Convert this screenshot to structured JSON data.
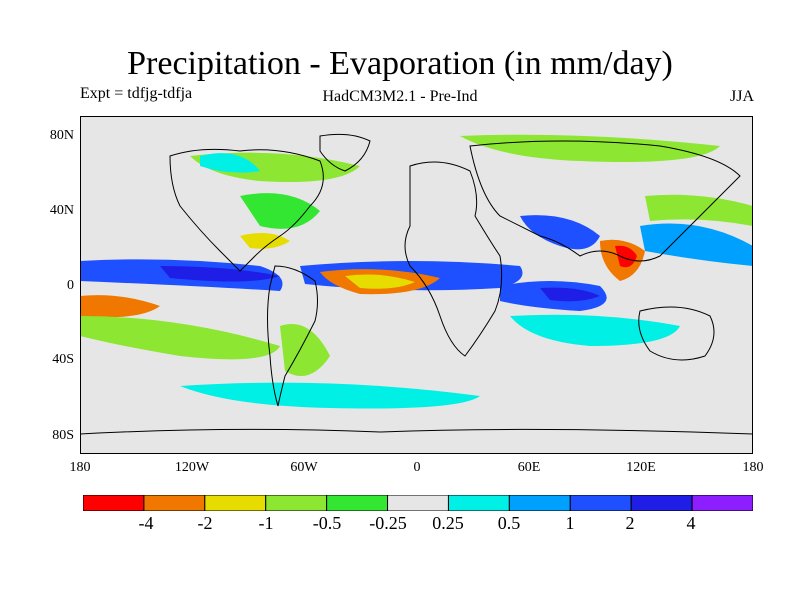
{
  "title": "Precipitation - Evaporation (in mm/day)",
  "subtitle_left": "Expt = tdfjg-tdfja",
  "subtitle_center": "HadCM3M2.1 - Pre-Ind",
  "subtitle_right": "JJA",
  "y_ticks": [
    "80N",
    "40N",
    "0",
    "40S",
    "80S"
  ],
  "x_ticks": [
    "180",
    "120W",
    "60W",
    "0",
    "60E",
    "120E",
    "180"
  ],
  "colorbar": {
    "labels": [
      "-4",
      "-2",
      "-1",
      "-0.5",
      "-0.25",
      "0.25",
      "0.5",
      "1",
      "2",
      "4"
    ],
    "colors": [
      "#ff0000",
      "#f07800",
      "#e6dc00",
      "#8ce632",
      "#32e632",
      "#e6e6e6",
      "#00f0e6",
      "#00a0ff",
      "#1e50ff",
      "#1e1ee6",
      "#8c1eff"
    ]
  },
  "colors": {
    "background": "#e6e6e6",
    "coast": "#000000"
  }
}
